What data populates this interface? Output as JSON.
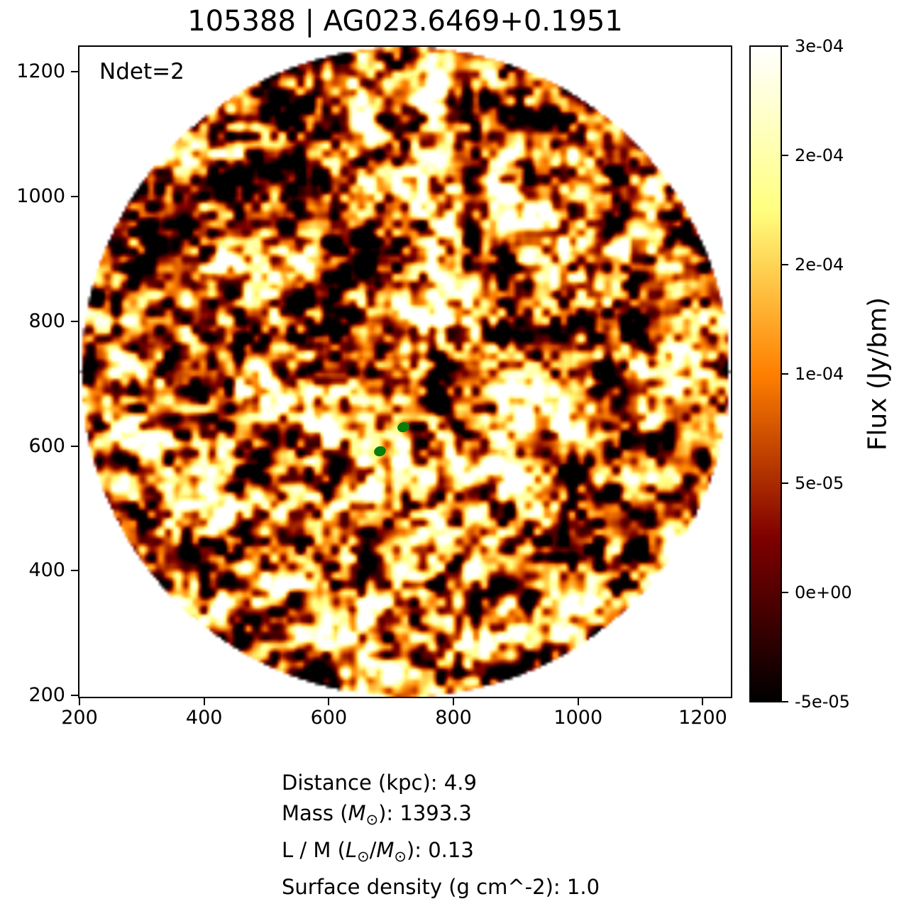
{
  "chart_data": {
    "type": "heatmap",
    "title": "105388 | AG023.6469+0.1951",
    "annotation": "Ndet=2",
    "description": "Circular continuum flux map rendered with a hot (afmhot) colormap noise field; two green detection markers near the field center",
    "x_ticks": [
      200,
      400,
      600,
      800,
      1000,
      1200
    ],
    "y_ticks": [
      200,
      400,
      600,
      800,
      1000,
      1200
    ],
    "x_range": [
      200,
      1245
    ],
    "y_range": [
      198,
      1240
    ],
    "colormap": "afmhot",
    "flux_min": -5e-05,
    "flux_max": 0.0003,
    "colorbar": {
      "label": "Flux (Jy/bm)",
      "tick_labels": [
        "3e-04",
        "2e-04",
        "2e-04",
        "1e-04",
        "5e-05",
        "0e+00",
        "-5e-05"
      ]
    },
    "markers": [
      {
        "x": 720,
        "y": 630
      },
      {
        "x": 682,
        "y": 592
      }
    ],
    "marker_color": "#0a7e0a",
    "noise_seed": 11
  },
  "footer": {
    "lines": [
      [
        {
          "t": "Distance (kpc): 4.9"
        }
      ],
      [
        {
          "t": "Mass ("
        },
        {
          "t": "M",
          "style": "italic"
        },
        {
          "t": "⊙",
          "style": "sub"
        },
        {
          "t": "): 1393.3"
        }
      ],
      [
        {
          "t": "L / M ("
        },
        {
          "t": "L",
          "style": "italic"
        },
        {
          "t": "⊙",
          "style": "sub"
        },
        {
          "t": "/"
        },
        {
          "t": "M",
          "style": "italic"
        },
        {
          "t": "⊙",
          "style": "sub"
        },
        {
          "t": "): 0.13"
        }
      ],
      [
        {
          "t": "Surface density (g cm^-2): 1.0"
        }
      ]
    ]
  }
}
